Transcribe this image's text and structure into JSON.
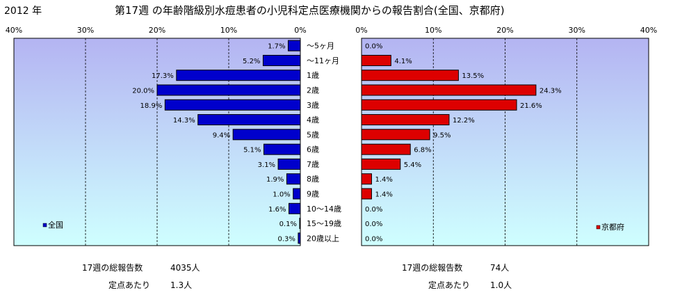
{
  "year_label": "2012 年",
  "title": "第17週 の年齢階級別水痘患者の小児科定点医療機関からの報告割合(全国、京都府)",
  "chart_data": {
    "type": "bar",
    "orientation": "horizontal",
    "layout": "back-to-back",
    "categories": [
      "～5ヶ月",
      "～11ヶ月",
      "1歳",
      "2歳",
      "3歳",
      "4歳",
      "5歳",
      "6歳",
      "7歳",
      "8歳",
      "9歳",
      "10～14歳",
      "15～19歳",
      "20歳以上"
    ],
    "xlim": [
      0,
      40
    ],
    "x_ticks": [
      0,
      10,
      20,
      30,
      40
    ],
    "grid": true,
    "series": [
      {
        "name": "全国",
        "color": "#0000cc",
        "side": "left",
        "values": [
          1.7,
          5.2,
          17.3,
          20.0,
          18.9,
          14.3,
          9.4,
          5.1,
          3.1,
          1.9,
          1.0,
          1.6,
          0.1,
          0.3
        ],
        "labels": [
          "1.7%",
          "5.2%",
          "17.3%",
          "20.0%",
          "18.9%",
          "14.3%",
          "9.4%",
          "5.1%",
          "3.1%",
          "1.9%",
          "1.0%",
          "1.6%",
          "0.1%",
          "0.3%"
        ],
        "tick_labels": [
          "40%",
          "30%",
          "20%",
          "10%",
          "0%"
        ],
        "legend_position": "bottom-left"
      },
      {
        "name": "京都府",
        "color": "#dd0000",
        "side": "right",
        "values": [
          0.0,
          4.1,
          13.5,
          24.3,
          21.6,
          12.2,
          9.5,
          6.8,
          5.4,
          1.4,
          1.4,
          0.0,
          0.0,
          0.0
        ],
        "labels": [
          "0.0%",
          "4.1%",
          "13.5%",
          "24.3%",
          "21.6%",
          "12.2%",
          "9.5%",
          "6.8%",
          "5.4%",
          "1.4%",
          "1.4%",
          "0.0%",
          "0.0%",
          "0.0%"
        ],
        "tick_labels": [
          "0%",
          "10%",
          "20%",
          "30%",
          "40%"
        ],
        "legend_position": "bottom-right"
      }
    ]
  },
  "footer": {
    "national": {
      "total_label": "17週の総報告数",
      "total_value": "4035人",
      "per_site_label": "定点あたり",
      "per_site_value": "1.3人"
    },
    "kyoto": {
      "total_label": "17週の総報告数",
      "total_value": "74人",
      "per_site_label": "定点あたり",
      "per_site_value": "1.0人"
    }
  }
}
